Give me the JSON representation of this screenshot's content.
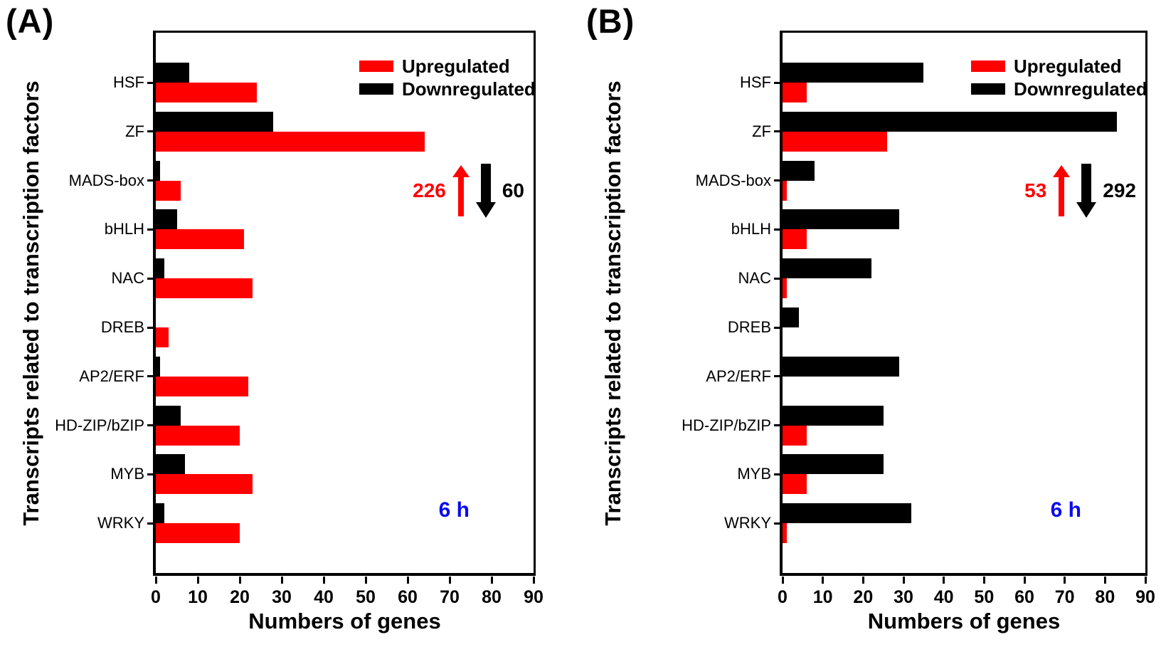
{
  "colors": {
    "upregulated": "#ff0000",
    "downregulated": "#000000",
    "time_label": "#0a0af0",
    "axis": "#000000",
    "background": "#ffffff"
  },
  "chart_data": [
    {
      "type": "bar",
      "orientation": "horizontal",
      "panel_label": "(A)",
      "time_label": "6 h",
      "xlabel": "Numbers of genes",
      "ylabel": "Transcripts related to transcription factors",
      "xlim": [
        0,
        90
      ],
      "x_ticks": [
        0,
        10,
        20,
        30,
        40,
        50,
        60,
        70,
        80,
        90
      ],
      "grid": false,
      "legend_position": "top-right",
      "categories": [
        "HSF",
        "ZF",
        "MADS-box",
        "bHLH",
        "NAC",
        "DREB",
        "AP2/ERF",
        "HD-ZIP/bZIP",
        "MYB",
        "WRKY"
      ],
      "series": [
        {
          "name": "Upregulated",
          "color": "#ff0000",
          "values": [
            24,
            64,
            6,
            21,
            23,
            3,
            22,
            20,
            23,
            20
          ]
        },
        {
          "name": "Downregulated",
          "color": "#000000",
          "values": [
            8,
            28,
            1,
            5,
            2,
            0,
            1,
            6,
            7,
            2
          ]
        }
      ],
      "annotation": {
        "up_total": "226",
        "down_total": "60"
      }
    },
    {
      "type": "bar",
      "orientation": "horizontal",
      "panel_label": "(B)",
      "time_label": "6 h",
      "xlabel": "Numbers of genes",
      "ylabel": "Transcripts related to transcription factors",
      "xlim": [
        0,
        90
      ],
      "x_ticks": [
        0,
        10,
        20,
        30,
        40,
        50,
        60,
        70,
        80,
        90
      ],
      "grid": false,
      "legend_position": "top-right",
      "categories": [
        "HSF",
        "ZF",
        "MADS-box",
        "bHLH",
        "NAC",
        "DREB",
        "AP2/ERF",
        "HD-ZIP/bZIP",
        "MYB",
        "WRKY"
      ],
      "series": [
        {
          "name": "Upregulated",
          "color": "#ff0000",
          "values": [
            6,
            26,
            1,
            6,
            1,
            0,
            0,
            6,
            6,
            1
          ]
        },
        {
          "name": "Downregulated",
          "color": "#000000",
          "values": [
            35,
            83,
            8,
            29,
            22,
            4,
            29,
            25,
            25,
            32
          ]
        }
      ],
      "annotation": {
        "up_total": "53",
        "down_total": "292"
      }
    }
  ]
}
